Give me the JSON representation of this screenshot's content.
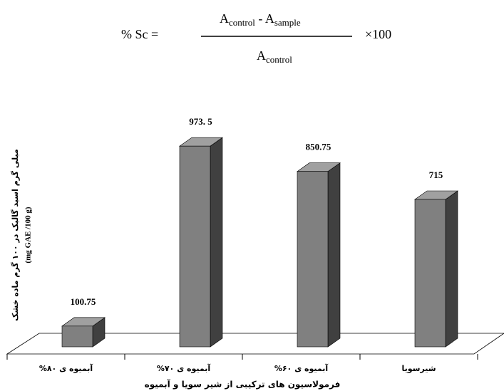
{
  "formula": {
    "lhs": "% Sc =",
    "num_a1": "A",
    "num_sub1": "control",
    "num_op": " - A",
    "num_sub2": "sample",
    "den_a": "A",
    "den_sub": "control",
    "multiplier": "×100"
  },
  "chart_data": {
    "type": "bar3d",
    "y_label": [
      "میلی گرم اسید گالیک در ۱۰۰ گرم ماده خشک",
      "(mg GAE /100 g)"
    ],
    "x_label": "فرمولاسیون های ترکیبی از شیر سویا و آبمیوه",
    "categories": [
      "آبمیوه ی ۸۰%",
      "آبمیوه ی ۷۰%",
      "آبمیوه ی ۶۰%",
      "شیرسویا"
    ],
    "values": [
      100.75,
      973.5,
      850.75,
      715
    ],
    "value_labels": [
      "100.75",
      "973. 5",
      "850.75",
      "715"
    ],
    "color": "#808080"
  }
}
